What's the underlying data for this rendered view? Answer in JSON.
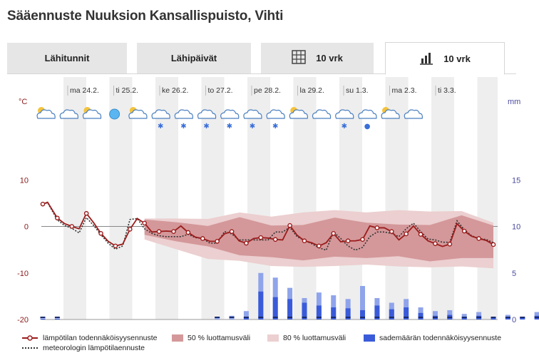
{
  "page": {
    "title": "Sääennuste Nuuksion Kansallispuisto, Vihti"
  },
  "tabs": [
    {
      "label": "Lähitunnit",
      "icon": "",
      "active": false
    },
    {
      "label": "Lähipäivät",
      "icon": "",
      "active": false
    },
    {
      "label": "10 vrk",
      "icon": "table-icon",
      "active": false
    },
    {
      "label": "10 vrk",
      "icon": "bar-chart-icon",
      "active": true
    }
  ],
  "chart_data": {
    "type": "line",
    "days": [
      "ma 24.2.",
      "ti 25.2.",
      "ke 26.2.",
      "to 27.2.",
      "pe 28.2.",
      "la 29.2.",
      "su 1.3.",
      "ma 2.3.",
      "ti 3.3."
    ],
    "left_axis": {
      "unit": "°C",
      "ticks": [
        10,
        0,
        -10,
        -20
      ],
      "range": [
        -20,
        20
      ]
    },
    "right_axis": {
      "unit": "mm",
      "ticks": [
        15,
        10,
        5,
        0
      ],
      "range": [
        0,
        20
      ]
    },
    "weather_symbols": [
      "partly-cloudy",
      "cloudy",
      "partly-cloudy",
      "clear",
      "partly-cloudy",
      "snow",
      "snow",
      "sleet",
      "snow",
      "snow",
      "snow",
      "partly-cloudy",
      "cloudy",
      "snow",
      "rain",
      "partly-cloudy",
      "cloudy"
    ],
    "temp_x": [
      0,
      0.33,
      1,
      1.5,
      2,
      2.5,
      3,
      3.5,
      4,
      4.5,
      5,
      5.5,
      6,
      6.5,
      7,
      7.5,
      8,
      8.5,
      9,
      9.5,
      10,
      10.5,
      11,
      11.5,
      12,
      12.5,
      13,
      13.5,
      14,
      14.5,
      15,
      15.5,
      16,
      16.5,
      17,
      17.5,
      18,
      18.5,
      19,
      19.5,
      20,
      20.5,
      21,
      21.5,
      22,
      22.5,
      23,
      23.5,
      24,
      24.5,
      25,
      25.5,
      26,
      26.5,
      27,
      27.5,
      28,
      28.5,
      29,
      29.5,
      30,
      30.5,
      31
    ],
    "temp_probable": [
      4.8,
      5.2,
      1.8,
      0.6,
      0,
      -0.5,
      2.8,
      0.8,
      -1.5,
      -3.2,
      -4.2,
      -3.8,
      -0.6,
      1.7,
      0.7,
      -1.2,
      -1.1,
      -1,
      -1.1,
      0.1,
      -1.3,
      -2.3,
      -2.6,
      -3.2,
      -3.2,
      -1.6,
      -1.1,
      -3.1,
      -3.6,
      -2.6,
      -2.4,
      -2.5,
      -2.8,
      -2.9,
      0.2,
      -1.9,
      -3.1,
      -3.5,
      -4.2,
      -3.5,
      -1.5,
      -3.3,
      -3.1,
      -3.1,
      -2.8,
      0.1,
      -0.3,
      -0.3,
      -1.1,
      -2.9,
      -1.6,
      0.1,
      -1.7,
      -3.1,
      -3.7,
      -4.3,
      -3.8,
      0.6,
      -1,
      -2.1,
      -2.6,
      -3,
      -3.9
    ],
    "temp_meteorologist": [
      4.8,
      5.1,
      1.4,
      0.2,
      -0.4,
      -1.4,
      1.9,
      0.2,
      -1.8,
      -3.6,
      -4.9,
      -4.2,
      1.5,
      1.7,
      -0.5,
      -1.5,
      -2,
      -2.2,
      -2.2,
      -2.2,
      -1.7,
      -2.4,
      -2.6,
      -3.6,
      -3.6,
      -1.1,
      -1.6,
      -2.9,
      -2.9,
      -2.9,
      -2.9,
      -2.9,
      -1.2,
      -1.2,
      -0.2,
      -2.2,
      -3,
      -3.7,
      -4.6,
      -5.1,
      -1.2,
      -2.6,
      -4.2,
      -5.1,
      -4.5,
      -2.2,
      -1.2,
      -1.2,
      -1.5,
      -2.2,
      -0.5,
      0.7,
      -1.1,
      -2.7,
      -2.9,
      -3.4,
      -3.4,
      1.2,
      -0.7,
      -2,
      -2.6,
      -2.8,
      -3.5
    ],
    "conf50": {
      "upper": [
        1.5,
        0.9,
        0.1,
        2.0,
        0.2,
        0.3,
        1.9,
        0.8,
        0.4,
        0.3,
        2.4,
        0.2
      ],
      "lower": [
        -1.8,
        -3.2,
        -4.3,
        -6.2,
        -6.6,
        -7.3,
        -6.5,
        -6.8,
        -6.4,
        -7.5,
        -6.8,
        -6.8
      ]
    },
    "conf80": {
      "upper": [
        1.7,
        1.7,
        1.6,
        3.0,
        2.1,
        3.0,
        3.5,
        3.0,
        3.5,
        3.2,
        3.3,
        0.8
      ],
      "lower": [
        -2.8,
        -4.9,
        -7.0,
        -7.4,
        -8.5,
        -8.7,
        -8.5,
        -8.2,
        -8.6,
        -8.8,
        -8.6,
        -9.0
      ]
    },
    "precip_total": [
      0.1,
      0.1,
      0,
      0,
      0,
      0,
      0,
      0,
      0,
      0,
      0,
      0,
      0.3,
      0.4,
      0.9,
      5.0,
      4.5,
      3.4,
      2.3,
      2.9,
      2.6,
      2.2,
      3.6,
      2.3,
      1.8,
      2.2,
      1.3,
      0.9,
      1.0,
      0.6,
      0.8,
      0.3,
      0.5,
      0.3,
      0.8,
      0.3,
      0.7,
      0.6,
      1.2,
      2.6,
      3.0,
      2.5,
      2.0,
      2.0,
      1.5,
      2.0,
      1.0,
      2.0,
      1.2,
      2.1,
      1.0,
      1.5,
      1.1,
      1.6,
      0.8,
      0.6,
      1.2,
      0.8,
      0.8,
      1.0,
      0.8,
      0.8,
      1.0
    ],
    "precip_probable": [
      0.1,
      0.1,
      0,
      0,
      0,
      0,
      0,
      0,
      0,
      0,
      0,
      0,
      0,
      0,
      0.3,
      3.0,
      2.4,
      2.2,
      1.8,
      1.5,
      1.3,
      1.2,
      1.0,
      1.5,
      1.1,
      1.3,
      0.7,
      0.4,
      0.5,
      0.3,
      0.4,
      0.2,
      0.2,
      0.2,
      0.4,
      0.2,
      0.3,
      0.3,
      0.5,
      0.8,
      1.0,
      1.2,
      1.0,
      1.0,
      0.8,
      1.0,
      0.5,
      1.0,
      0.5,
      0.7,
      0.5,
      0.6,
      0.4,
      0.5,
      0.3,
      0.4,
      0.4,
      0.3,
      0.3,
      0.3,
      0.3,
      0.3,
      0.3
    ],
    "colors": {
      "temp_line": "#9b1c1c",
      "meteorologist": "#333333",
      "conf50": "#d4989a",
      "conf80": "#eccfd0",
      "precip": "#3a5bd9",
      "precip_light": "#8fa4ea",
      "night_band": "#eeeeee",
      "zero_line": "#888888",
      "left_axis_text": "#8b1a1a",
      "right_axis_text": "#4a4aa0"
    }
  },
  "legend": [
    {
      "label": "lämpötilan todennäköisyysennuste",
      "kind": "line-dots",
      "color": "#9b1c1c"
    },
    {
      "label": "meteorologin lämpötilaennuste",
      "kind": "dotted",
      "color": "#333333"
    },
    {
      "label": "50 % luottamusväli",
      "kind": "box",
      "color": "#d4989a"
    },
    {
      "label": "80 % luottamusväli",
      "kind": "box",
      "color": "#eccfd0"
    },
    {
      "label": "sademäärän todennäköisyysennuste",
      "kind": "box",
      "color": "#3a5bd9"
    }
  ]
}
